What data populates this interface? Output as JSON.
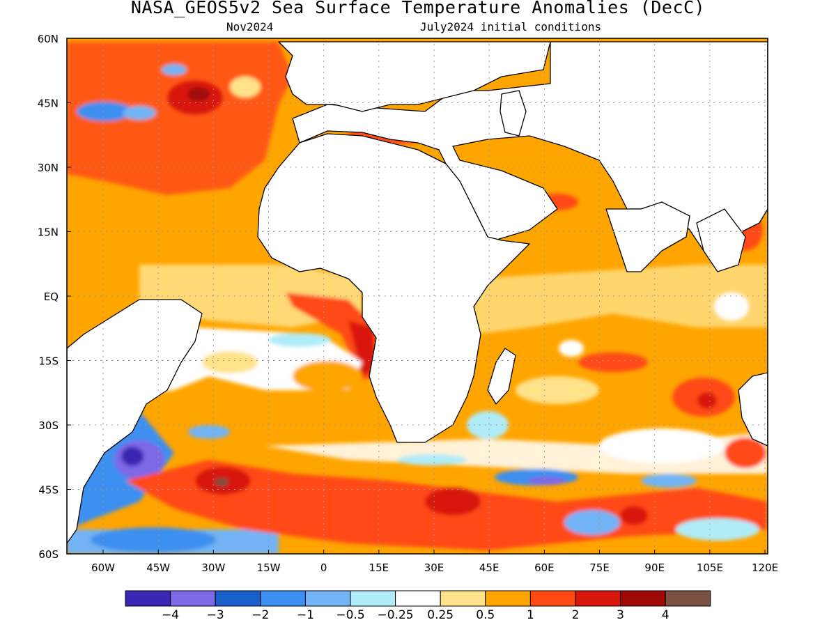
{
  "title": "NASA_GEOS5v2 Sea Surface Temperature Anomalies (DecC)",
  "subtitle_left": "Nov2024",
  "subtitle_right": "July2024 initial conditions",
  "map": {
    "lon_range": [
      -70,
      120
    ],
    "lat_range": [
      -60,
      60
    ],
    "x_ticks": [
      "60W",
      "45W",
      "30W",
      "15W",
      "0",
      "15E",
      "30E",
      "45E",
      "60E",
      "75E",
      "90E",
      "105E",
      "120E"
    ],
    "y_ticks": [
      "60N",
      "45N",
      "30N",
      "15N",
      "EQ",
      "15S",
      "30S",
      "45S",
      "60S"
    ],
    "land_color": "#ffffff",
    "grid": "dotted"
  },
  "colorbar": {
    "colors": [
      "#3a28b4",
      "#7d68e6",
      "#1a5fcc",
      "#3c8ff0",
      "#72b4f5",
      "#b0ecf8",
      "#ffffff",
      "#ffe28a",
      "#ffa500",
      "#ff4a14",
      "#d8160a",
      "#a00808",
      "#7a5040"
    ],
    "labels": [
      "-4",
      "-3",
      "-2",
      "-1",
      "-0.5",
      "-0.25",
      "0.25",
      "0.5",
      "1",
      "2",
      "3",
      "4"
    ]
  }
}
